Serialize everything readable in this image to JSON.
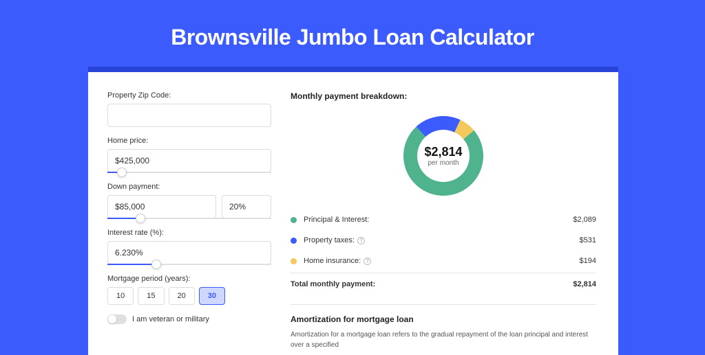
{
  "title": "Brownsville Jumbo Loan Calculator",
  "colors": {
    "page_bg": "#3b5bfd",
    "panel_border": "#2743d8",
    "accent": "#3b5bfd"
  },
  "form": {
    "zip": {
      "label": "Property Zip Code:",
      "value": ""
    },
    "home_price": {
      "label": "Home price:",
      "value": "$425,000",
      "slider_pct": 9
    },
    "down_payment": {
      "label": "Down payment:",
      "amount": "$85,000",
      "percent": "20%",
      "slider_pct": 20
    },
    "interest": {
      "label": "Interest rate (%):",
      "value": "6.230%",
      "slider_pct": 30
    },
    "period": {
      "label": "Mortgage period (years):",
      "options": [
        "10",
        "15",
        "20",
        "30"
      ],
      "selected": "30"
    },
    "veteran": {
      "label": "I am veteran or military",
      "checked": false
    }
  },
  "breakdown": {
    "title": "Monthly payment breakdown:",
    "center_amount": "$2,814",
    "center_sub": "per month",
    "items": [
      {
        "label": "Principal & Interest:",
        "value": "$2,089",
        "color": "#4fb38d",
        "info": false
      },
      {
        "label": "Property taxes:",
        "value": "$531",
        "color": "#3b5bfd",
        "info": true
      },
      {
        "label": "Home insurance:",
        "value": "$194",
        "color": "#f3c95b",
        "info": true
      }
    ],
    "total": {
      "label": "Total monthly payment:",
      "value": "$2,814"
    },
    "donut": {
      "slices": [
        {
          "color": "#4fb38d",
          "fraction": 0.742
        },
        {
          "color": "#3b5bfd",
          "fraction": 0.189
        },
        {
          "color": "#f3c95b",
          "fraction": 0.069
        }
      ],
      "start_angle": -40
    }
  },
  "amortization": {
    "title": "Amortization for mortgage loan",
    "text": "Amortization for a mortgage loan refers to the gradual repayment of the loan principal and interest over a specified"
  }
}
